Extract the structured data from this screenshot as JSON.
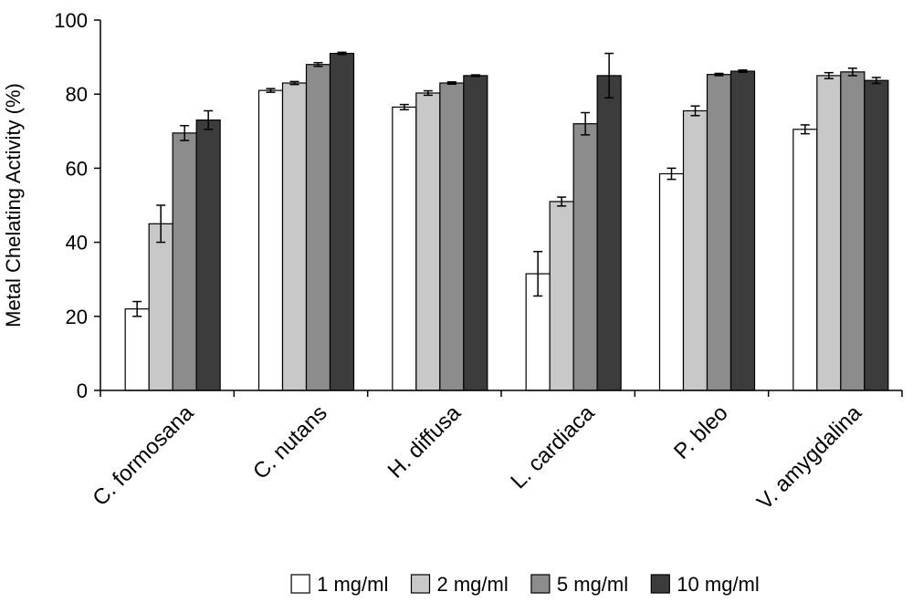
{
  "chart_data": {
    "type": "bar",
    "ylabel": "Metal Chelating Activity (%)",
    "ylim": [
      0,
      100
    ],
    "yticks": [
      "0",
      "20",
      "40",
      "60",
      "80",
      "100"
    ],
    "categories": [
      "C. formosana",
      "C. nutans",
      "H. diffusa",
      "L. cardiaca",
      "P. bleo",
      "V. amygdalina"
    ],
    "series": [
      {
        "name": "1 mg/ml",
        "color": "#ffffff",
        "values": [
          22,
          81,
          76.5,
          31.5,
          58.5,
          70.5
        ],
        "errors": [
          2,
          0.5,
          0.7,
          6,
          1.5,
          1.2
        ]
      },
      {
        "name": "2 mg/ml",
        "color": "#c8c8c8",
        "values": [
          45,
          83,
          80.3,
          51,
          75.5,
          85
        ],
        "errors": [
          5,
          0.4,
          0.6,
          1.2,
          1.3,
          0.8
        ]
      },
      {
        "name": "5 mg/ml",
        "color": "#8c8c8c",
        "values": [
          69.5,
          88,
          83,
          72,
          85.3,
          86
        ],
        "errors": [
          2,
          0.5,
          0.3,
          3,
          0.3,
          1
        ]
      },
      {
        "name": "10 mg/ml",
        "color": "#3c3c3c",
        "values": [
          73,
          91,
          85,
          85,
          86.2,
          83.7
        ],
        "errors": [
          2.5,
          0.3,
          0.2,
          6,
          0.3,
          0.8
        ]
      }
    ],
    "grid": false,
    "legend_position": "bottom"
  }
}
